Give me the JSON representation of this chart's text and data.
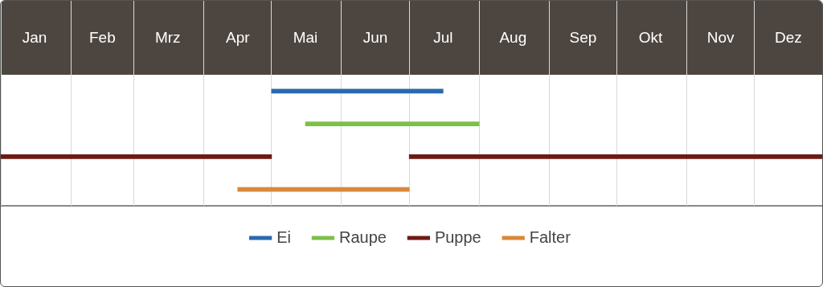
{
  "chart_data": {
    "type": "bar",
    "orientation": "horizontal",
    "categories": [
      null,
      null,
      null,
      null
    ],
    "xlim": [
      "--01-01",
      "--12-31"
    ],
    "xticks": [
      {
        "value": "--01-01",
        "label": null
      },
      {
        "value": "--01-16",
        "label": "Jan"
      },
      {
        "value": "--02-01",
        "label": null
      },
      {
        "value": "--02-15",
        "label": "Feb"
      },
      {
        "value": "--03-01",
        "label": null
      },
      {
        "value": "--03-16",
        "label": "Mrz"
      },
      {
        "value": "--04-01",
        "label": null
      },
      {
        "value": "--04-16",
        "label": "Apr"
      },
      {
        "value": "--05-01",
        "label": null
      },
      {
        "value": "--05-16",
        "label": "Mai"
      },
      {
        "value": "--06-01",
        "label": null
      },
      {
        "value": "--06-16",
        "label": "Jun"
      },
      {
        "value": "--07-01",
        "label": null
      },
      {
        "value": "--07-16",
        "label": "Jul"
      },
      {
        "value": "--08-01",
        "label": null
      },
      {
        "value": "--08-16",
        "label": "Aug"
      },
      {
        "value": "--09-01",
        "label": null
      },
      {
        "value": "--09-16",
        "label": "Sep"
      },
      {
        "value": "--10-01",
        "label": null
      },
      {
        "value": "--10-16",
        "label": "Okt"
      },
      {
        "value": "--11-01",
        "label": null
      },
      {
        "value": "--11-16",
        "label": "Nov"
      },
      {
        "value": "--12-01",
        "label": null
      },
      {
        "value": "--12-16",
        "label": "Dez"
      }
    ],
    "series": [
      {
        "name": "Ei",
        "color": "#2a6aae",
        "values": [
          76,
          null,
          null,
          null
        ],
        "base": [
          11443,
          null,
          null,
          null
        ]
      },
      {
        "name": "Raupe",
        "color": "#7cc04a",
        "values": [
          null,
          77,
          null,
          null
        ],
        "base": [
          null,
          11458,
          null,
          null
        ]
      },
      {
        "name": "Puppe",
        "color": "#6e1a14",
        "values": [
          null,
          null,
          120,
          null
        ],
        "base": [
          null,
          null,
          11323,
          null
        ]
      },
      {
        "color": "#6e1a14",
        "values": [
          null,
          null,
          183,
          null
        ],
        "base": [
          null,
          null,
          11504,
          null
        ]
      },
      {
        "name": "Falter",
        "color": "#d9893a",
        "values": [
          null,
          null,
          null,
          76
        ],
        "base": [
          null,
          null,
          null,
          11428
        ]
      }
    ],
    "grid": "x",
    "legend": "bottom",
    "tick_labels": "x"
  }
}
